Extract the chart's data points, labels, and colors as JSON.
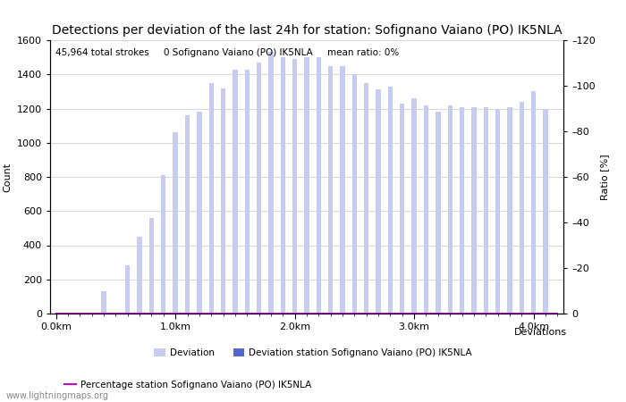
{
  "title": "Detections per deviation of the last 24h for station: Sofignano Vaiano (PO) IK5NLA",
  "ylabel_left": "Count",
  "ylabel_right": "Ratio [%]",
  "annotation": "45,964 total strokes     0 Sofignano Vaiano (PO) IK5NLA     mean ratio: 0%",
  "ylim_left": [
    0,
    1600
  ],
  "ylim_right": [
    0,
    120
  ],
  "yticks_left": [
    0,
    200,
    400,
    600,
    800,
    1000,
    1200,
    1400,
    1600
  ],
  "yticks_right": [
    0,
    20,
    40,
    60,
    80,
    100,
    120
  ],
  "xtick_labels": [
    "0.0km",
    "1.0km",
    "2.0km",
    "3.0km",
    "4.0km"
  ],
  "xtick_positions": [
    0,
    10,
    20,
    30,
    40
  ],
  "bar_color_light": "#c8ccf0",
  "bar_color_dark": "#5566cc",
  "line_color": "#cc00cc",
  "background_color": "#ffffff",
  "grid_color": "#c8c8c8",
  "title_fontsize": 10,
  "label_fontsize": 8,
  "tick_fontsize": 8,
  "annotation_fontsize": 7.5,
  "legend_fontsize": 7.5,
  "watermark": "www.lightningmaps.org",
  "bar_values": [
    0,
    0,
    0,
    0,
    130,
    0,
    280,
    450,
    560,
    810,
    1060,
    1160,
    1180,
    1350,
    1320,
    1430,
    1430,
    1470,
    1530,
    1500,
    1490,
    1500,
    1500,
    1450,
    1450,
    1400,
    1350,
    1310,
    1330,
    1230,
    1260,
    1220,
    1180,
    1220,
    1210,
    1210,
    1210,
    1200,
    1210,
    1240,
    1300,
    1200,
    0
  ],
  "station_bar_values": [
    0,
    0,
    0,
    0,
    0,
    0,
    0,
    0,
    0,
    0,
    0,
    0,
    0,
    0,
    0,
    0,
    0,
    0,
    0,
    0,
    0,
    0,
    0,
    0,
    0,
    0,
    0,
    0,
    0,
    0,
    0,
    0,
    0,
    0,
    0,
    0,
    0,
    0,
    0,
    0,
    0,
    0,
    0
  ],
  "ratio_values": [
    0,
    0,
    0,
    0,
    0,
    0,
    0,
    0,
    0,
    0,
    0,
    0,
    0,
    0,
    0,
    0,
    0,
    0,
    0,
    0,
    0,
    0,
    0,
    0,
    0,
    0,
    0,
    0,
    0,
    0,
    0,
    0,
    0,
    0,
    0,
    0,
    0,
    0,
    0,
    0,
    0,
    0,
    0
  ],
  "n_bars": 43,
  "deviations_label": "Deviations"
}
